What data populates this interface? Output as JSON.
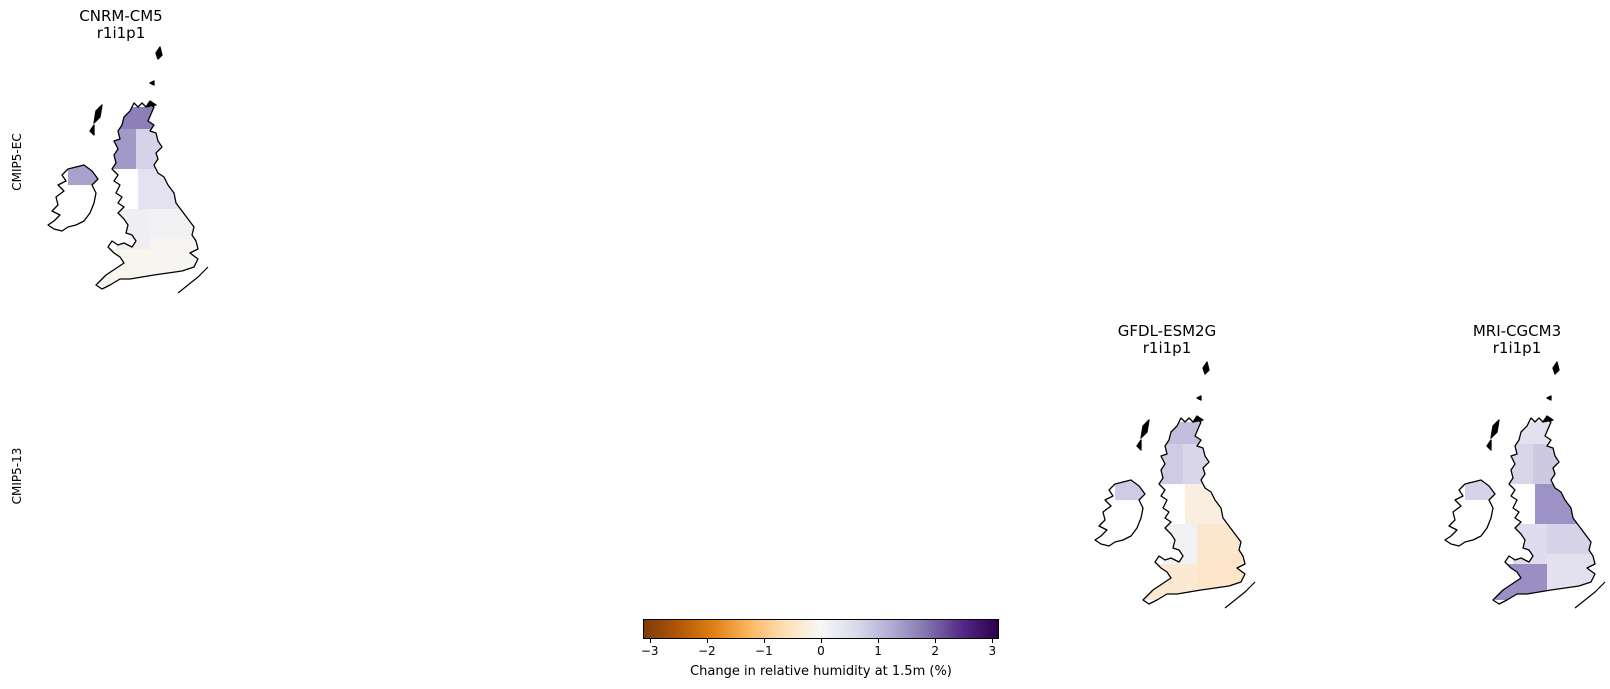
{
  "rows": [
    {
      "label": "CMIP5-EC"
    },
    {
      "label": "CMIP5-13"
    }
  ],
  "panels": [
    {
      "model": "CNRM-CM5",
      "member": "r1i1p1",
      "cells": {
        "north_scotland": "#8f7fb9",
        "west_scotland": "#a399c6",
        "east_scotland": "#d6d3e8",
        "n_ireland": "#a9a1cb",
        "northern_england": "#e4e2f0",
        "wales": "#eeeef3",
        "midlands": "#f1f1f3",
        "south_england": "#f6f5f2",
        "southwest": "#f8f4ee"
      }
    },
    {
      "model": "GFDL-ESM2G",
      "member": "r1i1p1",
      "cells": {
        "north_scotland": "#c4bedd",
        "west_scotland": "#cfcbe4",
        "east_scotland": "#d9d6ea",
        "n_ireland": "#cfcbe4",
        "northern_england": "#faeee1",
        "wales": "#f1f1f4",
        "midlands": "#fbe6ce",
        "south_england": "#fde5c9",
        "southwest": "#fbe9d4"
      }
    },
    {
      "model": "MRI-CGCM3",
      "member": "r1i1p1",
      "cells": {
        "north_scotland": "#e3e1f0",
        "west_scotland": "#d9d6ea",
        "east_scotland": "#cdc9e3",
        "n_ireland": "#d6d3e8",
        "northern_england": "#9d92c5",
        "wales": "#dedcee",
        "midlands": "#d6d3e8",
        "south_england": "#e3e1f0",
        "southwest": "#9a8ec3"
      }
    }
  ],
  "chart_data": {
    "type": "heatmap",
    "panel_grid": {
      "rows": [
        "CMIP5-EC",
        "CMIP5-13"
      ],
      "filled_panels": [
        {
          "row": "CMIP5-EC",
          "title": [
            "CNRM-CM5",
            "r1i1p1"
          ]
        },
        {
          "row": "CMIP5-13",
          "title": [
            "GFDL-ESM2G",
            "r1i1p1"
          ]
        },
        {
          "row": "CMIP5-13",
          "title": [
            "MRI-CGCM3",
            "r1i1p1"
          ]
        }
      ]
    },
    "region": "UK and Ireland",
    "colorbar": {
      "label": "Change in relative humidity at 1.5m (%)",
      "range": [
        -3.1,
        3.1
      ],
      "ticks": [
        -3,
        -2,
        -1,
        0,
        1,
        2,
        3
      ],
      "tick_labels": [
        "−3",
        "−2",
        "−1",
        "0",
        "1",
        "2",
        "3"
      ],
      "colormap": "PuOr",
      "colors": [
        "#7f3b08",
        "#b35806",
        "#e08214",
        "#fdb863",
        "#fee0b6",
        "#f7f7f7",
        "#d8daeb",
        "#b2abd2",
        "#8073ac",
        "#542788",
        "#2d004b"
      ]
    }
  }
}
